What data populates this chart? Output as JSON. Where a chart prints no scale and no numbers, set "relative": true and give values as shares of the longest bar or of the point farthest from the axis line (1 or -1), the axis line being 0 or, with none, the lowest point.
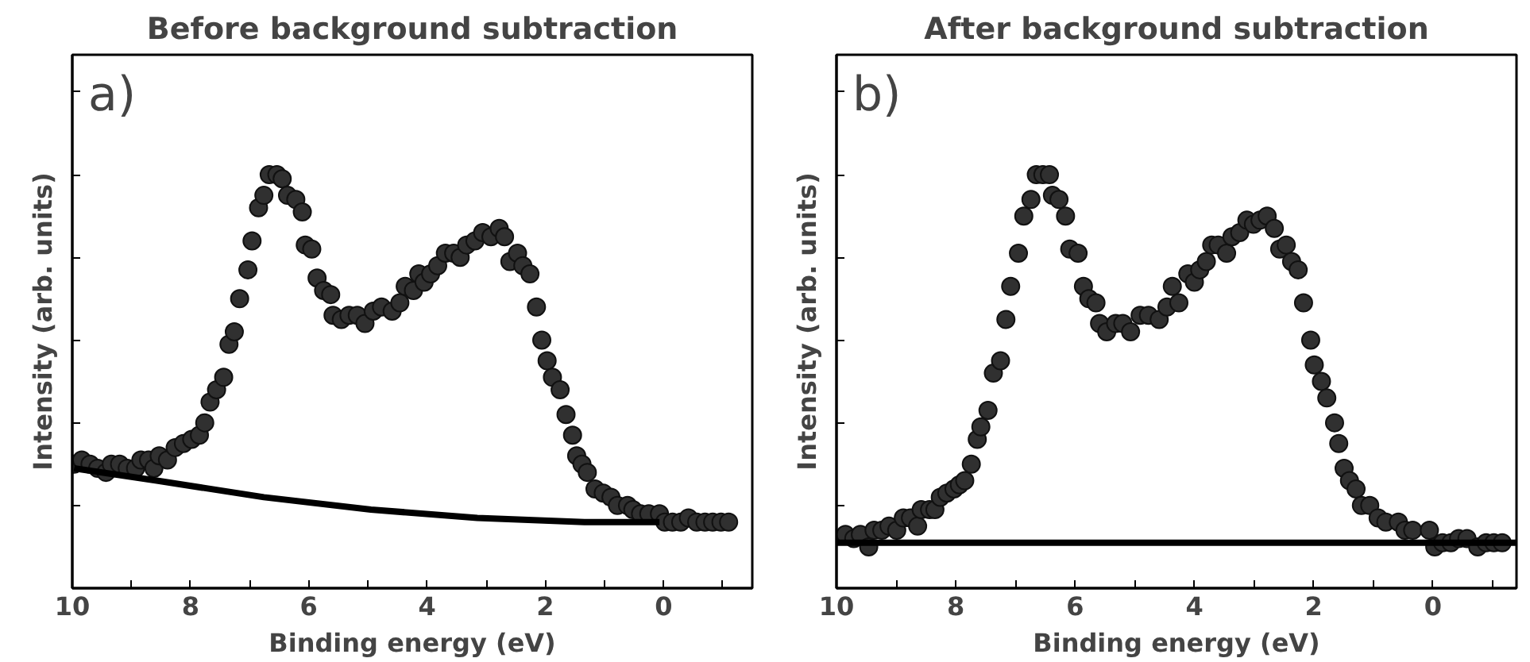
{
  "chart_data": [
    {
      "type": "scatter",
      "title": "Before background subtraction",
      "xlabel": "Binding energy (eV)",
      "ylabel": "Intensity (arb. units)",
      "annotations": [
        "a)"
      ],
      "relative": true,
      "marker": "circle",
      "grid": false,
      "xlim": [
        10,
        -1.5
      ],
      "xticks": [
        10,
        {
          "value": 9,
          "label": null
        },
        8,
        {
          "value": 7,
          "label": null
        },
        6,
        {
          "value": 5,
          "label": null
        },
        4,
        {
          "value": 3,
          "label": null
        },
        2,
        {
          "value": 1,
          "label": null
        },
        0,
        {
          "value": -1,
          "label": null
        }
      ],
      "series": [
        {
          "color": "#303030",
          "x": [
            9.97,
            9.84,
            9.7,
            9.57,
            9.43,
            9.34,
            9.2,
            9.07,
            8.93,
            8.84,
            8.71,
            8.62,
            8.53,
            8.39,
            8.26,
            8.12,
            7.98,
            7.85,
            7.76,
            7.67,
            7.56,
            7.44,
            7.35,
            7.26,
            7.17,
            7.03,
            6.96,
            6.85,
            6.76,
            6.67,
            6.54,
            6.45,
            6.36,
            6.22,
            6.11,
            6.06,
            5.95,
            5.86,
            5.75,
            5.63,
            5.59,
            5.45,
            5.32,
            5.18,
            5.05,
            4.91,
            4.77,
            4.59,
            4.46,
            4.37,
            4.23,
            4.14,
            4.05,
            3.94,
            3.82,
            3.69,
            3.55,
            3.44,
            3.33,
            3.19,
            3.06,
            2.92,
            2.78,
            2.69,
            2.6,
            2.47,
            2.38,
            2.26,
            2.15,
            2.06,
            1.97,
            1.88,
            1.75,
            1.65,
            1.54,
            1.47,
            1.38,
            1.29,
            1.16,
            1.02,
            0.89,
            0.78,
            0.61,
            0.52,
            0.39,
            0.25,
            0.07,
            -0.02,
            -0.15,
            -0.29,
            -0.42,
            -0.56,
            -0.7,
            -0.83,
            -0.97,
            -1.1
          ],
          "values": [
            0.3,
            0.31,
            0.3,
            0.29,
            0.28,
            0.3,
            0.3,
            0.29,
            0.29,
            0.31,
            0.31,
            0.29,
            0.32,
            0.31,
            0.34,
            0.35,
            0.36,
            0.37,
            0.4,
            0.45,
            0.48,
            0.51,
            0.59,
            0.62,
            0.7,
            0.77,
            0.84,
            0.92,
            0.95,
            1.0,
            1.0,
            0.99,
            0.95,
            0.94,
            0.91,
            0.83,
            0.82,
            0.75,
            0.72,
            0.71,
            0.66,
            0.65,
            0.66,
            0.66,
            0.64,
            0.67,
            0.68,
            0.67,
            0.69,
            0.73,
            0.72,
            0.76,
            0.74,
            0.76,
            0.78,
            0.81,
            0.81,
            0.8,
            0.83,
            0.84,
            0.86,
            0.85,
            0.87,
            0.85,
            0.79,
            0.81,
            0.78,
            0.76,
            0.68,
            0.6,
            0.55,
            0.51,
            0.48,
            0.42,
            0.37,
            0.32,
            0.3,
            0.28,
            0.24,
            0.23,
            0.22,
            0.2,
            0.2,
            0.19,
            0.18,
            0.18,
            0.18,
            0.16,
            0.16,
            0.16,
            0.17,
            0.16,
            0.16,
            0.16,
            0.16,
            0.16
          ]
        },
        {
          "type": "line",
          "marker": "none",
          "color": "#000000",
          "x": [
            9.97,
            8.57,
            6.76,
            4.95,
            3.15,
            1.34,
            0.07
          ],
          "values": [
            0.29,
            0.26,
            0.22,
            0.19,
            0.17,
            0.16,
            0.16
          ]
        }
      ]
    },
    {
      "type": "scatter",
      "title": "After background subtraction",
      "xlabel": "Binding energy (eV)",
      "ylabel": "Intensity (arb. units)",
      "annotations": [
        "b)"
      ],
      "relative": true,
      "marker": "circle",
      "grid": false,
      "xlim": [
        10,
        -1.4
      ],
      "xticks": [
        10,
        {
          "value": 9,
          "label": null
        },
        8,
        {
          "value": 7,
          "label": null
        },
        6,
        {
          "value": 5,
          "label": null
        },
        4,
        {
          "value": 3,
          "label": null
        },
        2,
        {
          "value": 1,
          "label": null
        },
        0,
        {
          "value": -1,
          "label": null
        }
      ],
      "series": [
        {
          "color": "#303030",
          "x": [
            9.85,
            9.71,
            9.6,
            9.46,
            9.37,
            9.24,
            9.12,
            8.99,
            8.88,
            8.76,
            8.64,
            8.58,
            8.44,
            8.35,
            8.26,
            8.15,
            8.03,
            7.94,
            7.85,
            7.74,
            7.64,
            7.58,
            7.46,
            7.37,
            7.25,
            7.16,
            7.08,
            6.95,
            6.86,
            6.74,
            6.65,
            6.54,
            6.43,
            6.38,
            6.27,
            6.16,
            6.09,
            5.95,
            5.86,
            5.77,
            5.65,
            5.59,
            5.47,
            5.32,
            5.2,
            5.07,
            4.91,
            4.77,
            4.59,
            4.46,
            4.37,
            4.26,
            4.11,
            4.0,
            3.91,
            3.8,
            3.71,
            3.6,
            3.46,
            3.37,
            3.24,
            3.12,
            3.01,
            2.9,
            2.78,
            2.66,
            2.57,
            2.46,
            2.37,
            2.26,
            2.17,
            2.05,
            1.99,
            1.87,
            1.78,
            1.65,
            1.58,
            1.49,
            1.4,
            1.29,
            1.2,
            1.06,
            0.92,
            0.79,
            0.58,
            0.47,
            0.34,
            0.06,
            -0.03,
            -0.16,
            -0.3,
            -0.43,
            -0.57,
            -0.75,
            -0.89,
            -1.02,
            -1.16
          ],
          "values": [
            0.13,
            0.12,
            0.13,
            0.1,
            0.14,
            0.14,
            0.15,
            0.14,
            0.17,
            0.17,
            0.15,
            0.19,
            0.19,
            0.19,
            0.22,
            0.23,
            0.24,
            0.25,
            0.26,
            0.3,
            0.36,
            0.39,
            0.43,
            0.52,
            0.55,
            0.65,
            0.73,
            0.81,
            0.9,
            0.94,
            1.0,
            1.0,
            1.0,
            0.95,
            0.94,
            0.9,
            0.82,
            0.81,
            0.73,
            0.7,
            0.69,
            0.64,
            0.62,
            0.64,
            0.64,
            0.62,
            0.66,
            0.66,
            0.65,
            0.68,
            0.73,
            0.69,
            0.76,
            0.74,
            0.77,
            0.79,
            0.83,
            0.83,
            0.81,
            0.85,
            0.86,
            0.89,
            0.88,
            0.89,
            0.9,
            0.87,
            0.82,
            0.83,
            0.79,
            0.77,
            0.69,
            0.6,
            0.54,
            0.5,
            0.46,
            0.4,
            0.35,
            0.29,
            0.26,
            0.24,
            0.2,
            0.2,
            0.17,
            0.16,
            0.16,
            0.14,
            0.14,
            0.14,
            0.1,
            0.11,
            0.11,
            0.12,
            0.12,
            0.1,
            0.11,
            0.11,
            0.11
          ]
        },
        {
          "type": "line",
          "marker": "none",
          "color": "#000000",
          "x": [
            10,
            -1.4
          ],
          "values": [
            0.11,
            0.11
          ]
        }
      ]
    }
  ]
}
